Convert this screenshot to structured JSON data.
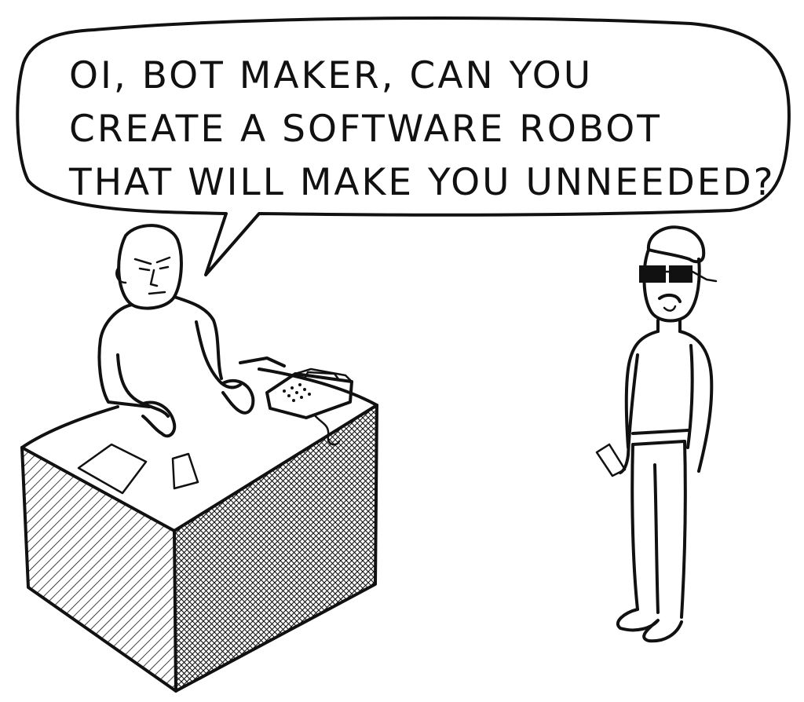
{
  "comic": {
    "speech_bubble": {
      "lines": [
        "OI, BOT MAKER, CAN YOU",
        "CREATE A SOFTWARE ROBOT",
        "THAT WILL MAKE YOU UNNEEDED?"
      ]
    }
  }
}
